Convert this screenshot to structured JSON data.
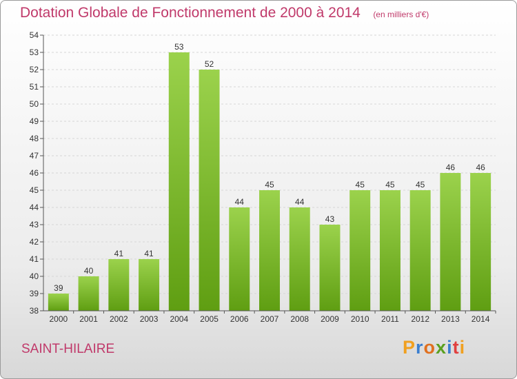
{
  "header": {
    "title": "Dotation Globale de Fonctionnement de 2000 à 2014",
    "subtitle": "(en milliers d'€)"
  },
  "footer": {
    "place": "SAINT-HILAIRE",
    "logo_letters": [
      "P",
      "r",
      "o",
      "x",
      "i",
      "t",
      "i"
    ]
  },
  "colors": {
    "title": "#c0396a",
    "bar_top": "#9bd24c",
    "bar_bottom": "#5f9e12",
    "grid": "#d6d6d6",
    "logo": [
      "#f0a020",
      "#3a7fd0",
      "#e07020",
      "#5aa020",
      "#3a7fd0",
      "#e04040",
      "#f0a020"
    ]
  },
  "chart_data": {
    "type": "bar",
    "title": "Dotation Globale de Fonctionnement de 2000 à 2014",
    "subtitle": "(en milliers d'€)",
    "categories": [
      "2000",
      "2001",
      "2002",
      "2003",
      "2004",
      "2005",
      "2006",
      "2007",
      "2008",
      "2009",
      "2010",
      "2011",
      "2012",
      "2013",
      "2014"
    ],
    "values": [
      39,
      40,
      41,
      41,
      53,
      52,
      44,
      45,
      44,
      43,
      45,
      45,
      45,
      46,
      46
    ],
    "ylim": [
      38,
      54
    ],
    "yticks": [
      38,
      39,
      40,
      41,
      42,
      43,
      44,
      45,
      46,
      47,
      48,
      49,
      50,
      51,
      52,
      53,
      54
    ],
    "grid": true,
    "xlabel": "",
    "ylabel": ""
  }
}
